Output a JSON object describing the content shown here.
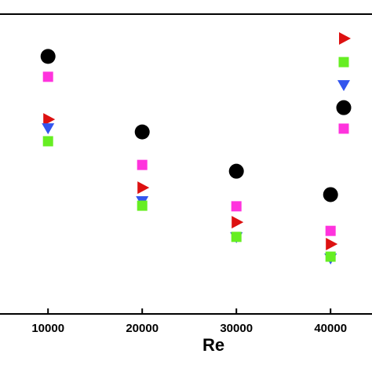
{
  "chart_data": {
    "type": "scatter",
    "x_label": "Re",
    "x": [
      10000,
      20000,
      30000,
      40000,
      41400
    ],
    "series": [
      {
        "marker": "circle",
        "color": "#000000",
        "values": [
          85.9,
          60.7,
          47.6,
          39.8,
          68.8
        ]
      },
      {
        "marker": "square",
        "color": "#ff33dd",
        "values": [
          79.1,
          49.7,
          35.9,
          27.7,
          61.8
        ]
      },
      {
        "marker": "triangle-right",
        "color": "#dd1111",
        "values": [
          64.9,
          42.1,
          30.6,
          23.3,
          91.9
        ]
      },
      {
        "marker": "triangle-down",
        "color": "#3355ee",
        "values": [
          62.0,
          37.7,
          25.7,
          18.6,
          76.4
        ]
      },
      {
        "marker": "square",
        "color": "#66ee22",
        "values": [
          57.6,
          36.1,
          25.7,
          19.1,
          84.0
        ]
      }
    ],
    "xlim": [
      4900,
      44400
    ],
    "ylim": [
      0,
      100
    ],
    "xticks": [
      10000,
      20000,
      30000,
      40000
    ]
  }
}
